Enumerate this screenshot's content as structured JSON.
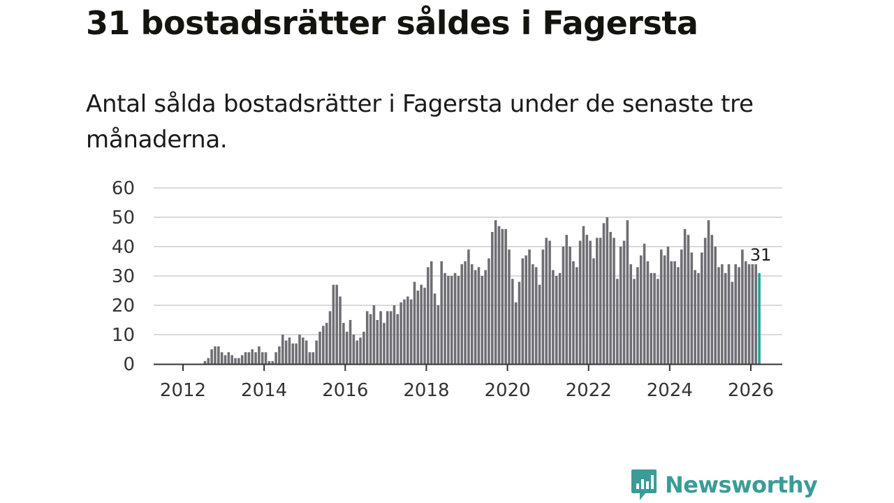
{
  "header": {
    "title": "31 bostadsrätter såldes i Fagersta",
    "subtitle": "Antal sålda bostadsrätter i Fagersta under de senaste tre månaderna."
  },
  "brand": {
    "name": "Newsworthy",
    "color": "#3a9c98"
  },
  "colors": {
    "bar": "#6e6e74",
    "highlight": "#21a39a",
    "grid": "#d9d9d9",
    "axis": "#333333"
  },
  "chart_data": {
    "type": "bar",
    "title": "31 bostadsrätter såldes i Fagersta",
    "xlabel": "",
    "ylabel": "",
    "ylim": [
      0,
      60
    ],
    "yticks": [
      "0",
      "10",
      "20",
      "30",
      "40",
      "50",
      "60"
    ],
    "xticks": [
      "2012",
      "2014",
      "2016",
      "2018",
      "2020",
      "2022",
      "2024",
      "2026"
    ],
    "start_month": "2012-01",
    "grid": true,
    "highlight_label": "31",
    "values": [
      0,
      0,
      0,
      0,
      0,
      0,
      1,
      2,
      5,
      6,
      6,
      4,
      3,
      4,
      3,
      2,
      2,
      3,
      4,
      4,
      5,
      4,
      6,
      4,
      4,
      1,
      1,
      4,
      6,
      10,
      8,
      9,
      7,
      7,
      10,
      9,
      8,
      4,
      4,
      8,
      11,
      13,
      14,
      18,
      27,
      27,
      23,
      14,
      11,
      15,
      10,
      8,
      9,
      11,
      18,
      17,
      20,
      15,
      18,
      14,
      18,
      18,
      20,
      17,
      21,
      22,
      23,
      22,
      28,
      25,
      27,
      26,
      33,
      35,
      24,
      20,
      35,
      31,
      30,
      30,
      31,
      30,
      34,
      35,
      39,
      34,
      32,
      33,
      30,
      32,
      36,
      45,
      49,
      47,
      46,
      46,
      39,
      29,
      21,
      28,
      36,
      37,
      39,
      34,
      33,
      27,
      39,
      43,
      42,
      32,
      30,
      31,
      40,
      44,
      40,
      35,
      33,
      42,
      47,
      44,
      42,
      36,
      43,
      43,
      48,
      50,
      45,
      43,
      29,
      40,
      42,
      49,
      34,
      29,
      33,
      37,
      41,
      35,
      31,
      31,
      29,
      39,
      37,
      40,
      35,
      35,
      33,
      39,
      46,
      44,
      38,
      32,
      31,
      38,
      43,
      49,
      44,
      40,
      33,
      34,
      31,
      34,
      28,
      34,
      33,
      39,
      35,
      34,
      34,
      34,
      31
    ]
  }
}
